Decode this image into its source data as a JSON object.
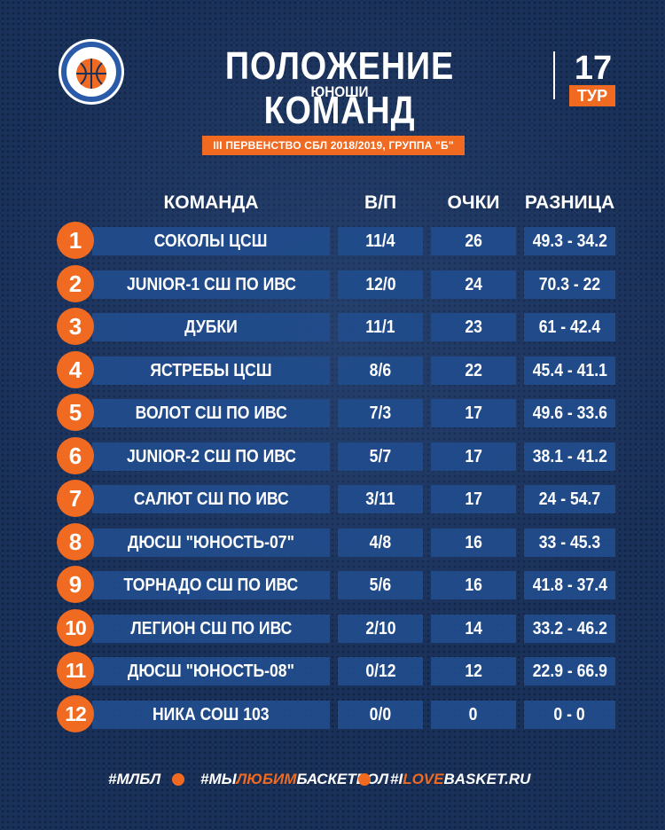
{
  "header": {
    "title": "ПОЛОЖЕНИЕ КОМАНД",
    "subtitle": "ЮНОШИ",
    "tour_number": "17",
    "tour_label": "ТУР",
    "logo_icon": "basketball-league-logo"
  },
  "banner": "III ПЕРВЕНСТВО СБЛ 2018/2019, ГРУППА \"Б\"",
  "table": {
    "columns": [
      "КОМАНДА",
      "В/П",
      "ОЧКИ",
      "РАЗНИЦА"
    ],
    "rows": [
      {
        "rank": "1",
        "team": "СОКОЛЫ ЦСШ",
        "wl": "11/4",
        "points": "26",
        "diff": "49.3 - 34.2"
      },
      {
        "rank": "2",
        "team": "JUNIOR-1 СШ ПО ИВС",
        "wl": "12/0",
        "points": "24",
        "diff": "70.3 - 22"
      },
      {
        "rank": "3",
        "team": "ДУБКИ",
        "wl": "11/1",
        "points": "23",
        "diff": "61 - 42.4"
      },
      {
        "rank": "4",
        "team": "ЯСТРЕБЫ ЦСШ",
        "wl": "8/6",
        "points": "22",
        "diff": "45.4 - 41.1"
      },
      {
        "rank": "5",
        "team": "ВОЛОТ СШ ПО ИВС",
        "wl": "7/3",
        "points": "17",
        "diff": "49.6 - 33.6"
      },
      {
        "rank": "6",
        "team": "JUNIOR-2 СШ ПО ИВС",
        "wl": "5/7",
        "points": "17",
        "diff": "38.1 - 41.2"
      },
      {
        "rank": "7",
        "team": "САЛЮТ СШ ПО ИВС",
        "wl": "3/11",
        "points": "17",
        "diff": "24 - 54.7"
      },
      {
        "rank": "8",
        "team": "ДЮСШ \"ЮНОСТЬ-07\"",
        "wl": "4/8",
        "points": "16",
        "diff": "33 - 45.3"
      },
      {
        "rank": "9",
        "team": "ТОРНАДО СШ ПО ИВС",
        "wl": "5/6",
        "points": "16",
        "diff": "41.8 - 37.4"
      },
      {
        "rank": "10",
        "team": "ЛЕГИОН СШ ПО ИВС",
        "wl": "2/10",
        "points": "14",
        "diff": "33.2 - 46.2"
      },
      {
        "rank": "11",
        "team": "ДЮСШ \"ЮНОСТЬ-08\"",
        "wl": "0/12",
        "points": "12",
        "diff": "22.9 - 66.9"
      },
      {
        "rank": "12",
        "team": "НИКА СОШ 103",
        "wl": "0/0",
        "points": "0",
        "diff": "0 - 0"
      }
    ]
  },
  "footer": {
    "tag1": "#МЛБЛ",
    "tag2_pre": "#МЫ",
    "tag2_accent": "ЛЮБИМ",
    "tag2_post": "БАСКЕТБОЛ",
    "tag3_pre": "#I",
    "tag3_accent": "LOVE",
    "tag3_post": "BASKET.RU",
    "separator_icon": "basketball-icon"
  },
  "colors": {
    "background": "#1a3159",
    "accent": "#f06b21",
    "row_fill": "#214c8c"
  }
}
